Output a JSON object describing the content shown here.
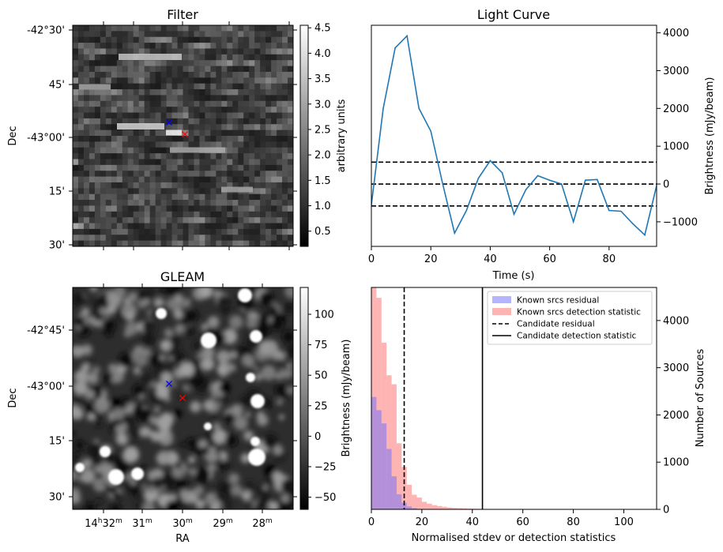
{
  "panels": {
    "filter": {
      "title": "Filter",
      "ylabel": "Dec",
      "dec_ticks": [
        "-42°30'",
        "45'",
        "-43°00'",
        "15'",
        "30'"
      ],
      "colorbar": {
        "label": "arbitrary units",
        "ticks": [
          "0.5",
          "1.0",
          "1.5",
          "2.0",
          "2.5",
          "3.0",
          "3.5",
          "4.0",
          "4.5"
        ],
        "range": [
          0.2,
          4.55
        ]
      },
      "markers": [
        {
          "symbol": "x",
          "color": "#0000ff"
        },
        {
          "symbol": "x",
          "color": "#ff0000"
        }
      ]
    },
    "gleam": {
      "title": "GLEAM",
      "ylabel": "Dec",
      "xlabel": "RA",
      "dec_ticks": [
        "-42°45'",
        "-43°00'",
        "15'",
        "30'"
      ],
      "ra_ticks": [
        {
          "base": "14",
          "sup1": "h",
          "mid": "32",
          "sup2": "m"
        },
        {
          "base": "31",
          "sup2": "m"
        },
        {
          "base": "30",
          "sup2": "m"
        },
        {
          "base": "29",
          "sup2": "m"
        },
        {
          "base": "28",
          "sup2": "m"
        }
      ],
      "colorbar": {
        "label": "Brightness (mJy/beam)",
        "ticks": [
          "−50",
          "−25",
          "0",
          "25",
          "50",
          "75",
          "100"
        ],
        "range": [
          -60,
          122
        ]
      },
      "markers": [
        {
          "symbol": "x",
          "color": "#0000ff"
        },
        {
          "symbol": "x",
          "color": "#ff0000"
        }
      ]
    }
  },
  "chart_data": [
    {
      "type": "line",
      "title": "Light Curve",
      "xlabel": "Time (s)",
      "ylabel": "Brightness (mJy/beam)",
      "xlim": [
        0,
        96
      ],
      "ylim": [
        -1650,
        4200
      ],
      "xticks": [
        0,
        20,
        40,
        60,
        80
      ],
      "yticks": [
        -1000,
        0,
        1000,
        2000,
        3000,
        4000
      ],
      "x": [
        0,
        4,
        8,
        12,
        16,
        20,
        24,
        28,
        32,
        36,
        40,
        44,
        48,
        52,
        56,
        60,
        64,
        68,
        72,
        76,
        80,
        84,
        88,
        92,
        96
      ],
      "series": [
        {
          "values": [
            -550,
            2000,
            3600,
            3920,
            2000,
            1400,
            0,
            -1300,
            -700,
            150,
            620,
            300,
            -800,
            -150,
            220,
            100,
            0,
            -1000,
            100,
            120,
            -700,
            -720,
            -1050,
            -1350,
            -40
          ],
          "color": "#1f77b4"
        }
      ],
      "hlines": [
        580,
        0,
        -580
      ],
      "hline_style": "dashed"
    },
    {
      "type": "bar",
      "subtype": "histogram",
      "xlabel": "Normalised stdev or detection statistics",
      "ylabel": "Number of Sources",
      "xlim": [
        0,
        113
      ],
      "ylim": [
        0,
        4700
      ],
      "xticks": [
        0,
        20,
        40,
        60,
        80,
        100
      ],
      "yticks": [
        0,
        1000,
        2000,
        3000,
        4000
      ],
      "bin_width": 2,
      "series": [
        {
          "name": "Known srcs residual",
          "color": "#6a6aff",
          "bin_start": 0,
          "values": [
            2380,
            2100,
            1820,
            1280,
            700,
            320,
            140,
            60,
            25,
            10,
            5,
            2
          ]
        },
        {
          "name": "Known srcs detection statistic",
          "color": "#ff6a6a",
          "bin_start": 0,
          "values": [
            4700,
            4480,
            3530,
            2840,
            2650,
            1400,
            900,
            520,
            310,
            250,
            160,
            120,
            90,
            70,
            55,
            40,
            30,
            25,
            20,
            15,
            12,
            10,
            8,
            6,
            5,
            4,
            3,
            3,
            2,
            2,
            2,
            1,
            1,
            1,
            1,
            1,
            1,
            1,
            1,
            1,
            2,
            2,
            1,
            1,
            1,
            1,
            1,
            1,
            1,
            1,
            1,
            1,
            1,
            1,
            1
          ]
        }
      ],
      "vlines": [
        {
          "name": "Candidate residual",
          "x": 13,
          "style": "dashed"
        },
        {
          "name": "Candidate detection statistic",
          "x": 44,
          "style": "solid"
        }
      ],
      "legend": "top-right"
    }
  ]
}
